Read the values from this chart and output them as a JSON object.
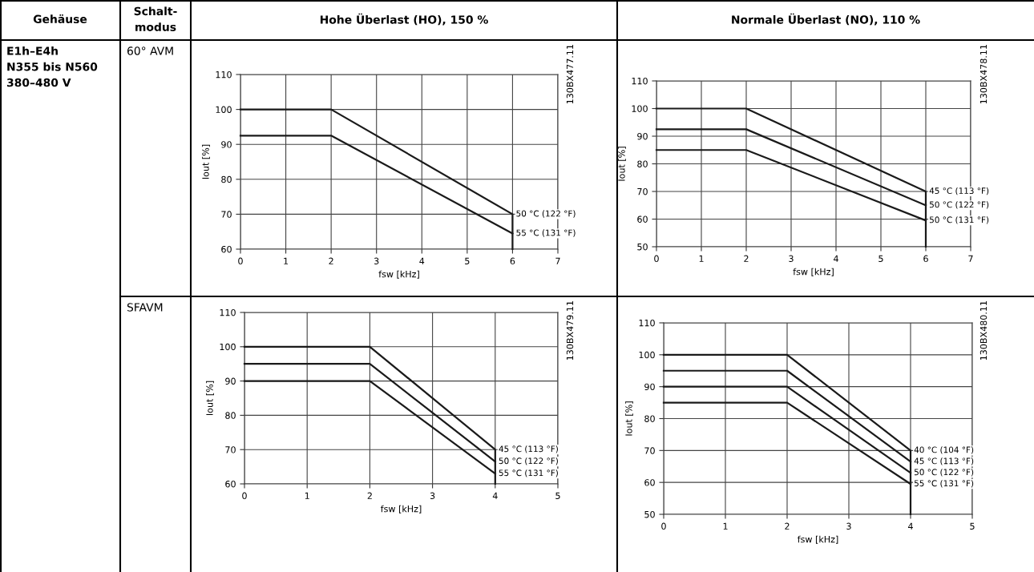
{
  "chart_data": [
    {
      "type": "line",
      "title": "Hohe Überlast (HO), 150 %",
      "xlabel": "fsw [kHz]",
      "ylabel": "Iout [%]",
      "xlim": [
        0,
        7
      ],
      "xticks": [
        0,
        1,
        2,
        3,
        4,
        5,
        6,
        7
      ],
      "ylim": [
        60,
        110
      ],
      "yticks": [
        60,
        70,
        80,
        90,
        100,
        110
      ],
      "grid": true,
      "legend": false,
      "marker": "none",
      "line_style": "solid",
      "annotations": [
        "Gehäuse",
        "Schalt-\nmodus",
        "E1h–E4h\nN355 bis N560\n380–480 V",
        "60° AVM",
        "130BX477.11"
      ],
      "series": [
        {
          "name": "50 °C (122 °F)",
          "color": "#1a1a1a",
          "x": [
            0,
            2,
            6,
            6
          ],
          "values": [
            100,
            100,
            70,
            60
          ]
        },
        {
          "name": "55 °C (131 °F)",
          "color": "#1a1a1a",
          "x": [
            0,
            2,
            6
          ],
          "values": [
            92.5,
            92.5,
            64.5
          ]
        }
      ]
    },
    {
      "type": "line",
      "title": "Normale Überlast (NO), 110 %",
      "xlabel": "fsw [kHz]",
      "ylabel": "Iout [%]",
      "xlim": [
        0,
        7
      ],
      "xticks": [
        0,
        1,
        2,
        3,
        4,
        5,
        6,
        7
      ],
      "ylim": [
        50,
        110
      ],
      "yticks": [
        50,
        60,
        70,
        80,
        90,
        100,
        110
      ],
      "grid": true,
      "legend": false,
      "marker": "none",
      "line_style": "solid",
      "annotations": [
        "130BX478.11"
      ],
      "series": [
        {
          "name": "45 °C (113 °F)",
          "color": "#1a1a1a",
          "x": [
            0,
            2,
            6,
            6
          ],
          "values": [
            100,
            100,
            70,
            50
          ]
        },
        {
          "name": "50 °C (122 °F)",
          "color": "#1a1a1a",
          "x": [
            0,
            2,
            6
          ],
          "values": [
            92.5,
            92.5,
            65
          ]
        },
        {
          "name": "50 °C (131 °F)",
          "color": "#1a1a1a",
          "x": [
            0,
            2,
            6
          ],
          "values": [
            85,
            85,
            59.5
          ]
        }
      ]
    },
    {
      "type": "line",
      "xlabel": "fsw [kHz]",
      "ylabel": "Iout [%]",
      "xlim": [
        0,
        5
      ],
      "xticks": [
        0,
        1,
        2,
        3,
        4,
        5
      ],
      "ylim": [
        60,
        110
      ],
      "yticks": [
        60,
        70,
        80,
        90,
        100,
        110
      ],
      "grid": true,
      "legend": false,
      "marker": "none",
      "line_style": "solid",
      "annotations": [
        "SFAVM",
        "130BX479.11"
      ],
      "series": [
        {
          "name": "45 °C (113 °F)",
          "color": "#1a1a1a",
          "x": [
            0,
            2,
            4,
            4
          ],
          "values": [
            100,
            100,
            70,
            60
          ]
        },
        {
          "name": "50 °C (122 °F)",
          "color": "#1a1a1a",
          "x": [
            0,
            2,
            4
          ],
          "values": [
            95,
            95,
            66.5
          ]
        },
        {
          "name": "55 °C (131 °F)",
          "color": "#1a1a1a",
          "x": [
            0,
            2,
            4
          ],
          "values": [
            90,
            90,
            63
          ]
        }
      ]
    },
    {
      "type": "line",
      "xlabel": "fsw [kHz]",
      "ylabel": "Iout [%]",
      "xlim": [
        0,
        5
      ],
      "xticks": [
        0,
        1,
        2,
        3,
        4,
        5
      ],
      "ylim": [
        50,
        110
      ],
      "yticks": [
        50,
        60,
        70,
        80,
        90,
        100,
        110
      ],
      "grid": true,
      "legend": false,
      "marker": "none",
      "line_style": "solid",
      "annotations": [
        "130BX480.11"
      ],
      "series": [
        {
          "name": "40 °C (104 °F)",
          "color": "#1a1a1a",
          "x": [
            0,
            2,
            4,
            4
          ],
          "values": [
            100,
            100,
            70,
            50
          ]
        },
        {
          "name": "45 °C (113 °F)",
          "color": "#1a1a1a",
          "x": [
            0,
            2,
            4
          ],
          "values": [
            95,
            95,
            66.5
          ]
        },
        {
          "name": "50 °C (122 °F)",
          "color": "#1a1a1a",
          "x": [
            0,
            2,
            4
          ],
          "values": [
            90,
            90,
            63
          ]
        },
        {
          "name": "55 °C (131 °F)",
          "color": "#1a1a1a",
          "x": [
            0,
            2,
            4
          ],
          "values": [
            85,
            85,
            59.5
          ]
        }
      ]
    }
  ]
}
